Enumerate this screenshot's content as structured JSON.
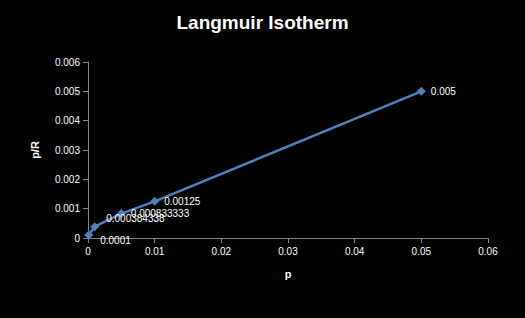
{
  "chart_data": {
    "type": "line",
    "title": "Langmuir Isotherm",
    "x_label": "p",
    "y_label": "p/R",
    "x": [
      0.0001,
      0.001,
      0.005,
      0.01,
      0.05
    ],
    "values": [
      0.0001,
      0.000384338,
      0.000833333,
      0.00125,
      0.005
    ],
    "color": "#4f81bd",
    "marker": "diamond",
    "data_labels": true,
    "grid": false,
    "xlim": [
      0,
      0.06
    ],
    "xticks": [
      0,
      0.01,
      0.02,
      0.03,
      0.04,
      0.05,
      0.06
    ],
    "ylim": [
      0,
      0.006
    ],
    "yticks": [
      0,
      0.001,
      0.002,
      0.003,
      0.004,
      0.005,
      0.006
    ]
  }
}
